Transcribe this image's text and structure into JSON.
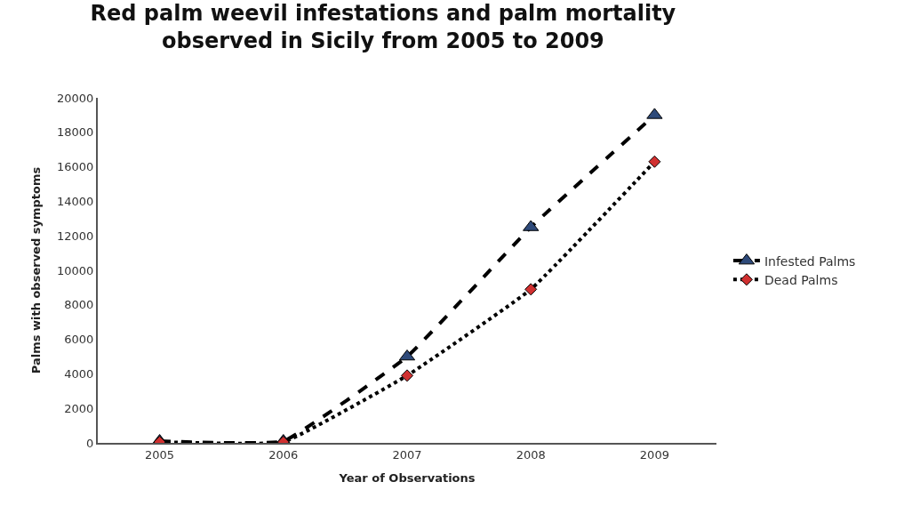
{
  "chart_data": {
    "type": "line",
    "title": "Red palm weevil infestations and palm mortality\nobserved in Sicily from 2005 to 2009",
    "xlabel": "Year of Observations",
    "ylabel": "Palms with observed symptoms",
    "categories": [
      "2005",
      "2006",
      "2007",
      "2008",
      "2009"
    ],
    "series": [
      {
        "name": "Infested Palms",
        "color": "#2e4a7a",
        "marker": "triangle",
        "line_style": "dashed",
        "values": [
          100,
          100,
          5000,
          12500,
          19000
        ]
      },
      {
        "name": "Dead Palms",
        "color": "#d03030",
        "marker": "diamond",
        "line_style": "dotted",
        "values": [
          50,
          50,
          3900,
          8900,
          16300
        ]
      }
    ],
    "ylim": [
      0,
      20000
    ],
    "yticks": [
      0,
      2000,
      4000,
      6000,
      8000,
      10000,
      12000,
      14000,
      16000,
      18000,
      20000
    ],
    "legend": "right"
  }
}
